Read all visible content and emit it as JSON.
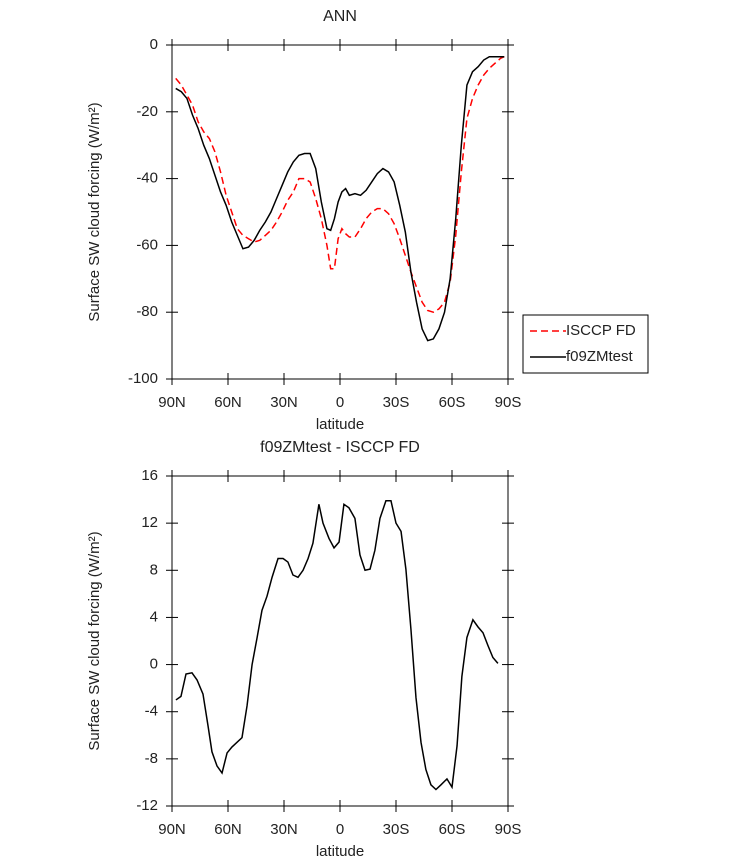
{
  "chart_data": [
    {
      "type": "line",
      "title": "ANN",
      "xlabel": "latitude",
      "ylabel": "Surface SW cloud forcing (W/m²)",
      "x": [
        88,
        85,
        82,
        79,
        76,
        73,
        70,
        67,
        64,
        61,
        58,
        55,
        52,
        49,
        46,
        43,
        40,
        37,
        34,
        31,
        28,
        25,
        22,
        19,
        16,
        13,
        10,
        7,
        5,
        3,
        1,
        -1,
        -3,
        -5,
        -8,
        -11,
        -14,
        -17,
        -20,
        -23,
        -26,
        -29,
        -32,
        -35,
        -38,
        -41,
        -44,
        -47,
        -50,
        -53,
        -56,
        -59,
        -62,
        -65,
        -68,
        -71,
        -74,
        -77,
        -80,
        -83,
        -86,
        -88
      ],
      "series": [
        {
          "name": "ISCCP FD",
          "color": "#ff0000",
          "dash": true,
          "values": [
            -10,
            -12,
            -15,
            -18,
            -23,
            -26,
            -28,
            -32,
            -38,
            -45,
            -50,
            -55,
            -57,
            -58,
            -59,
            -58.5,
            -57,
            -55.5,
            -53,
            -50,
            -46.5,
            -44,
            -40,
            -40,
            -41,
            -46,
            -52,
            -60,
            -67,
            -67,
            -58,
            -55,
            -56.5,
            -57.5,
            -57.5,
            -55,
            -52,
            -50,
            -49,
            -49,
            -50.5,
            -53.5,
            -58,
            -63,
            -68,
            -72.5,
            -77,
            -79.5,
            -80,
            -79,
            -77,
            -71,
            -57,
            -38,
            -22,
            -16,
            -12,
            -9,
            -7,
            -5.5,
            -4,
            -3.5
          ]
        },
        {
          "name": "f09ZMtest",
          "color": "#000000",
          "dash": false,
          "values": [
            -13,
            -14,
            -16,
            -21,
            -25,
            -30,
            -34,
            -39,
            -44,
            -48,
            -53,
            -57,
            -61,
            -60.5,
            -58.5,
            -55.5,
            -53,
            -50,
            -46,
            -42,
            -38,
            -35,
            -33,
            -32.5,
            -32.5,
            -37,
            -47,
            -55,
            -55.5,
            -52,
            -47,
            -44,
            -43,
            -45,
            -44.5,
            -45,
            -43.5,
            -41,
            -38.5,
            -37,
            -38,
            -41,
            -48,
            -56,
            -68,
            -77,
            -85,
            -88.5,
            -88,
            -85,
            -80,
            -70,
            -52,
            -30,
            -12,
            -8,
            -6.5,
            -4.5,
            -3.5,
            -3.5,
            -3.5,
            -3.5
          ]
        }
      ],
      "xlim": [
        90,
        -90
      ],
      "xticks": [
        {
          "value": 90,
          "label": "90N"
        },
        {
          "value": 60,
          "label": "60N"
        },
        {
          "value": 30,
          "label": "30N"
        },
        0,
        {
          "value": -30,
          "label": "30S"
        },
        {
          "value": -60,
          "label": "60S"
        },
        {
          "value": -90,
          "label": "90S"
        }
      ],
      "ylim": [
        -100,
        0
      ],
      "yticks": [
        0,
        -20,
        -40,
        -60,
        -80,
        -100
      ],
      "legend": "right"
    },
    {
      "type": "line",
      "title": "f09ZMtest - ISCCP FD",
      "xlabel": "latitude",
      "ylabel": "Surface SW cloud forcing (W/m²)",
      "x": [
        87.9,
        85.2,
        82.5,
        79.3,
        76.6,
        73.4,
        70.7,
        68.6,
        65.9,
        63.2,
        60.5,
        57.9,
        52.5,
        49.8,
        47.1,
        44.4,
        41.8,
        39.1,
        36.4,
        33.2,
        30.5,
        27.9,
        25.2,
        22.5,
        19.8,
        17.1,
        14.5,
        11.3,
        9.1,
        5.9,
        3.2,
        0.5,
        -2.1,
        -4.8,
        -8,
        -10.7,
        -13.4,
        -16.1,
        -18.7,
        -21.4,
        -24.6,
        -27.3,
        -30,
        -32.7,
        -35.3,
        -38,
        -40.7,
        -43.4,
        -46,
        -48.7,
        -51.4,
        -54.1,
        -57.3,
        -60,
        -62.7,
        -65.3,
        -68,
        -71.2,
        -73.9,
        -76.6,
        -79.3,
        -81.9,
        -84.6
      ],
      "series": [
        {
          "color": "#000000",
          "dash": false,
          "values": [
            -3,
            -2.7,
            -0.8,
            -0.7,
            -1.3,
            -2.5,
            -5.2,
            -7.4,
            -8.6,
            -9.2,
            -7.5,
            -7,
            -6.2,
            -3.5,
            0,
            2.3,
            4.6,
            5.8,
            7.4,
            9,
            9,
            8.7,
            7.6,
            7.4,
            8,
            9,
            10.3,
            13.6,
            12,
            10.7,
            9.9,
            10.4,
            13.6,
            13.3,
            12.4,
            9.3,
            8,
            8.1,
            9.7,
            12.4,
            13.9,
            13.9,
            12,
            11.3,
            8.1,
            3,
            -2.8,
            -6.6,
            -8.9,
            -10.2,
            -10.6,
            -10.2,
            -9.7,
            -10.4,
            -6.9,
            -1,
            2.3,
            3.8,
            3.2,
            2.7,
            1.6,
            0.6,
            0.1
          ]
        }
      ],
      "xlim": [
        90,
        -90
      ],
      "xticks": [
        {
          "value": 90,
          "label": "90N"
        },
        {
          "value": 60,
          "label": "60N"
        },
        {
          "value": 30,
          "label": "30N"
        },
        0,
        {
          "value": -30,
          "label": "30S"
        },
        {
          "value": -60,
          "label": "60S"
        },
        {
          "value": -90,
          "label": "90S"
        }
      ],
      "ylim": [
        -12,
        16
      ],
      "yticks": [
        -12,
        -8,
        -4,
        0,
        4,
        8,
        12,
        16
      ]
    }
  ]
}
